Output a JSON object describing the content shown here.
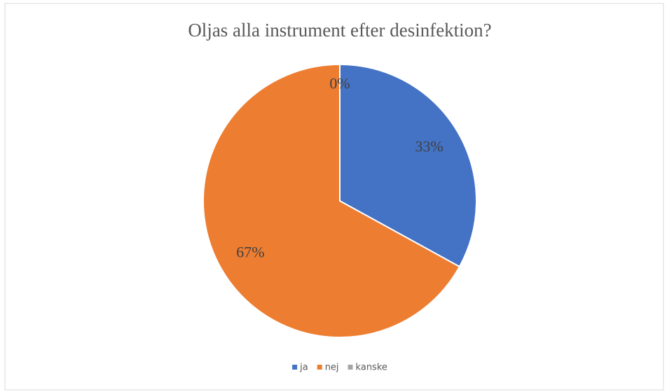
{
  "chart_data": {
    "type": "pie",
    "title": "Oljas alla instrument efter desinfektion?",
    "categories": [
      "ja",
      "nej",
      "kanske"
    ],
    "values": [
      33,
      67,
      0
    ],
    "value_labels": [
      "33%",
      "67%",
      "0%"
    ],
    "colors": [
      "#4472c4",
      "#ed7d31",
      "#a5a5a5"
    ],
    "legend": "bottom"
  }
}
